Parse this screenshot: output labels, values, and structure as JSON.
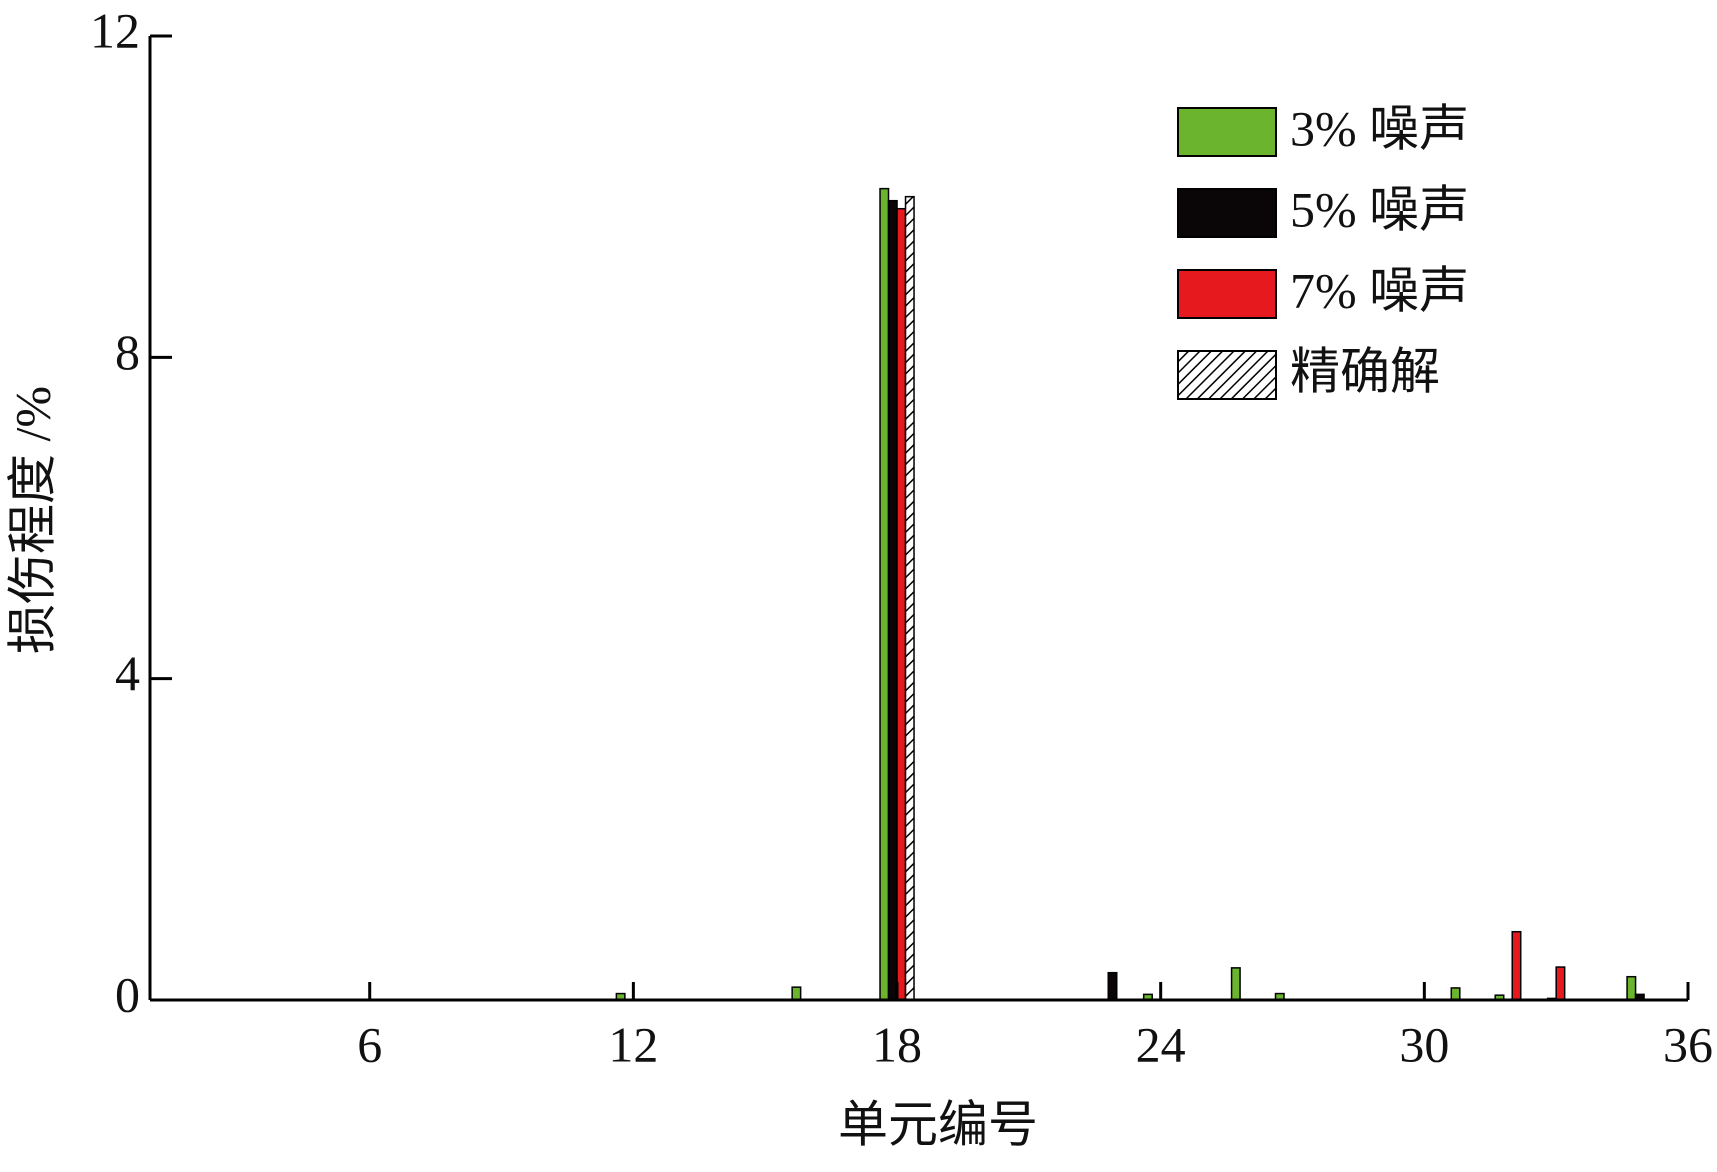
{
  "chart_data": {
    "type": "bar",
    "x_label": "单元编号",
    "y_label": "损伤程度 /%",
    "x": [
      1,
      2,
      3,
      4,
      5,
      6,
      7,
      8,
      9,
      10,
      11,
      12,
      13,
      14,
      15,
      16,
      17,
      18,
      19,
      20,
      21,
      22,
      23,
      24,
      25,
      26,
      27,
      28,
      29,
      30,
      31,
      32,
      33,
      34,
      35,
      36
    ],
    "xlim": [
      1,
      36
    ],
    "xticks": [
      6,
      12,
      18,
      24,
      30,
      36
    ],
    "ylim": [
      0,
      12
    ],
    "yticks": [
      0,
      4,
      8,
      12
    ],
    "legend": "upper right",
    "series": [
      {
        "name": "3% 噪声",
        "color": "#6ab52d",
        "values": [
          0,
          0,
          0,
          0,
          0,
          0,
          0,
          0,
          0,
          0,
          0,
          0.08,
          0,
          0,
          0,
          0.16,
          0,
          10.1,
          0,
          0,
          0,
          0,
          0,
          0.07,
          0,
          0.4,
          0.08,
          0,
          0,
          0,
          0.15,
          0.06,
          0,
          0,
          0.29,
          0
        ]
      },
      {
        "name": "5% 噪声",
        "color": "#0a0506",
        "values": [
          0,
          0,
          0,
          0,
          0,
          0,
          0,
          0,
          0,
          0,
          0,
          0,
          0,
          0,
          0,
          0,
          0,
          9.95,
          0,
          0,
          0,
          0,
          0.34,
          0,
          0,
          0,
          0,
          0,
          0,
          0,
          0,
          0,
          0.02,
          0,
          0.07,
          0
        ]
      },
      {
        "name": "7% 噪声",
        "color": "#e5191e",
        "values": [
          0,
          0,
          0,
          0,
          0,
          0,
          0,
          0,
          0,
          0,
          0,
          0,
          0,
          0,
          0,
          0,
          0,
          9.85,
          0,
          0,
          0,
          0,
          0,
          0,
          0,
          0,
          0,
          0,
          0,
          0,
          0,
          0.85,
          0.41,
          0,
          0,
          0
        ]
      },
      {
        "name": "精确解",
        "color": "#ffffff",
        "hatch": true,
        "values": [
          0,
          0,
          0,
          0,
          0,
          0,
          0,
          0,
          0,
          0,
          0,
          0,
          0,
          0,
          0,
          0,
          0,
          10.0,
          0,
          0,
          0,
          0,
          0,
          0,
          0,
          0,
          0,
          0,
          0,
          0,
          0,
          0,
          0,
          0,
          0,
          0
        ]
      }
    ]
  }
}
